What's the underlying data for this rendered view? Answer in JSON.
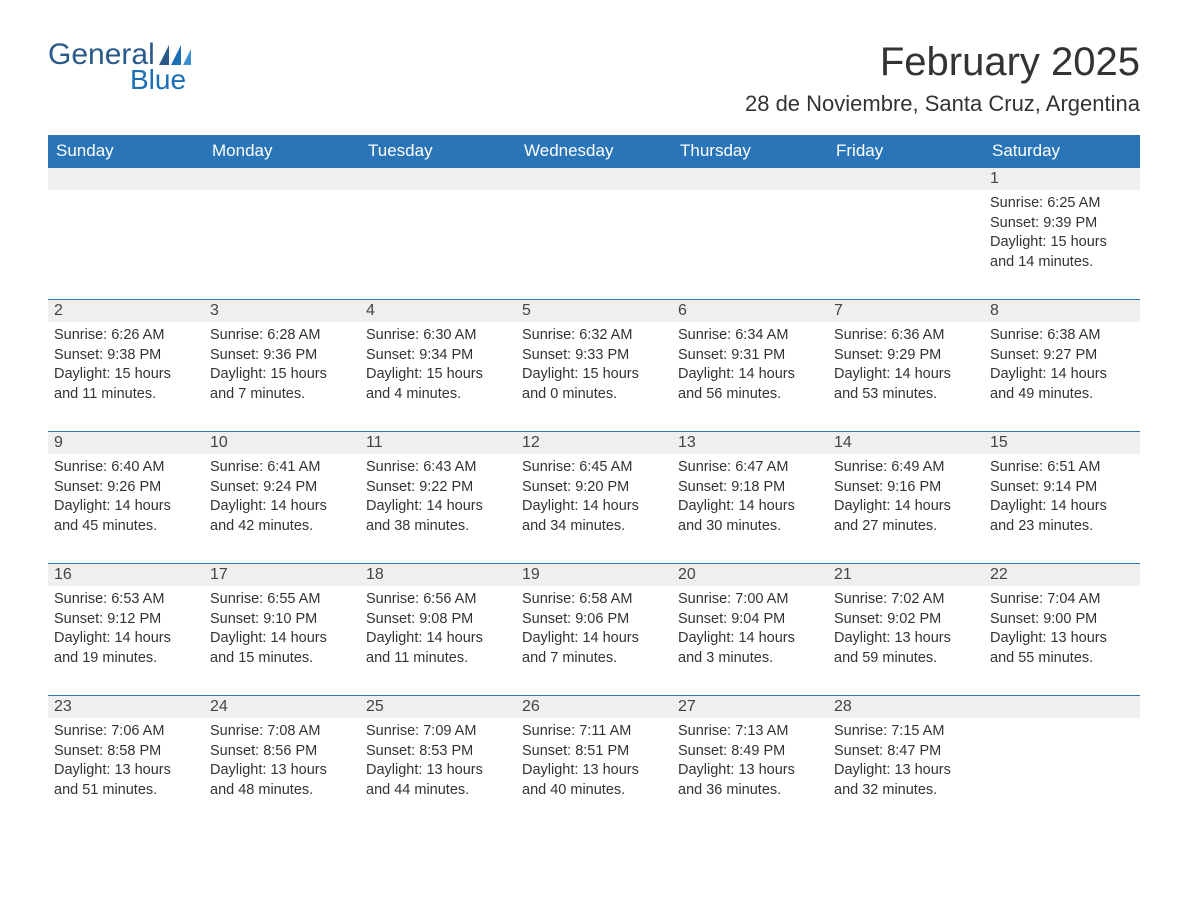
{
  "logo": {
    "word1": "General",
    "word2": "Blue"
  },
  "title": "February 2025",
  "location": "28 de Noviembre, Santa Cruz, Argentina",
  "colors": {
    "header_bg": "#2a74b8",
    "header_fg": "#ffffff",
    "row_stripe": "#efefef",
    "rule": "#2a74b8",
    "text": "#333333",
    "logo_dark": "#2a5a8a",
    "logo_light": "#1b6fb5"
  },
  "typography": {
    "title_fontsize_pt": 30,
    "location_fontsize_pt": 17,
    "header_fontsize_pt": 13,
    "daynum_fontsize_pt": 12,
    "body_fontsize_pt": 11
  },
  "day_headers": [
    "Sunday",
    "Monday",
    "Tuesday",
    "Wednesday",
    "Thursday",
    "Friday",
    "Saturday"
  ],
  "weeks": [
    [
      null,
      null,
      null,
      null,
      null,
      null,
      {
        "n": "1",
        "sunrise": "6:25 AM",
        "sunset": "9:39 PM",
        "daylight": "15 hours and 14 minutes."
      }
    ],
    [
      {
        "n": "2",
        "sunrise": "6:26 AM",
        "sunset": "9:38 PM",
        "daylight": "15 hours and 11 minutes."
      },
      {
        "n": "3",
        "sunrise": "6:28 AM",
        "sunset": "9:36 PM",
        "daylight": "15 hours and 7 minutes."
      },
      {
        "n": "4",
        "sunrise": "6:30 AM",
        "sunset": "9:34 PM",
        "daylight": "15 hours and 4 minutes."
      },
      {
        "n": "5",
        "sunrise": "6:32 AM",
        "sunset": "9:33 PM",
        "daylight": "15 hours and 0 minutes."
      },
      {
        "n": "6",
        "sunrise": "6:34 AM",
        "sunset": "9:31 PM",
        "daylight": "14 hours and 56 minutes."
      },
      {
        "n": "7",
        "sunrise": "6:36 AM",
        "sunset": "9:29 PM",
        "daylight": "14 hours and 53 minutes."
      },
      {
        "n": "8",
        "sunrise": "6:38 AM",
        "sunset": "9:27 PM",
        "daylight": "14 hours and 49 minutes."
      }
    ],
    [
      {
        "n": "9",
        "sunrise": "6:40 AM",
        "sunset": "9:26 PM",
        "daylight": "14 hours and 45 minutes."
      },
      {
        "n": "10",
        "sunrise": "6:41 AM",
        "sunset": "9:24 PM",
        "daylight": "14 hours and 42 minutes."
      },
      {
        "n": "11",
        "sunrise": "6:43 AM",
        "sunset": "9:22 PM",
        "daylight": "14 hours and 38 minutes."
      },
      {
        "n": "12",
        "sunrise": "6:45 AM",
        "sunset": "9:20 PM",
        "daylight": "14 hours and 34 minutes."
      },
      {
        "n": "13",
        "sunrise": "6:47 AM",
        "sunset": "9:18 PM",
        "daylight": "14 hours and 30 minutes."
      },
      {
        "n": "14",
        "sunrise": "6:49 AM",
        "sunset": "9:16 PM",
        "daylight": "14 hours and 27 minutes."
      },
      {
        "n": "15",
        "sunrise": "6:51 AM",
        "sunset": "9:14 PM",
        "daylight": "14 hours and 23 minutes."
      }
    ],
    [
      {
        "n": "16",
        "sunrise": "6:53 AM",
        "sunset": "9:12 PM",
        "daylight": "14 hours and 19 minutes."
      },
      {
        "n": "17",
        "sunrise": "6:55 AM",
        "sunset": "9:10 PM",
        "daylight": "14 hours and 15 minutes."
      },
      {
        "n": "18",
        "sunrise": "6:56 AM",
        "sunset": "9:08 PM",
        "daylight": "14 hours and 11 minutes."
      },
      {
        "n": "19",
        "sunrise": "6:58 AM",
        "sunset": "9:06 PM",
        "daylight": "14 hours and 7 minutes."
      },
      {
        "n": "20",
        "sunrise": "7:00 AM",
        "sunset": "9:04 PM",
        "daylight": "14 hours and 3 minutes."
      },
      {
        "n": "21",
        "sunrise": "7:02 AM",
        "sunset": "9:02 PM",
        "daylight": "13 hours and 59 minutes."
      },
      {
        "n": "22",
        "sunrise": "7:04 AM",
        "sunset": "9:00 PM",
        "daylight": "13 hours and 55 minutes."
      }
    ],
    [
      {
        "n": "23",
        "sunrise": "7:06 AM",
        "sunset": "8:58 PM",
        "daylight": "13 hours and 51 minutes."
      },
      {
        "n": "24",
        "sunrise": "7:08 AM",
        "sunset": "8:56 PM",
        "daylight": "13 hours and 48 minutes."
      },
      {
        "n": "25",
        "sunrise": "7:09 AM",
        "sunset": "8:53 PM",
        "daylight": "13 hours and 44 minutes."
      },
      {
        "n": "26",
        "sunrise": "7:11 AM",
        "sunset": "8:51 PM",
        "daylight": "13 hours and 40 minutes."
      },
      {
        "n": "27",
        "sunrise": "7:13 AM",
        "sunset": "8:49 PM",
        "daylight": "13 hours and 36 minutes."
      },
      {
        "n": "28",
        "sunrise": "7:15 AM",
        "sunset": "8:47 PM",
        "daylight": "13 hours and 32 minutes."
      },
      null
    ]
  ],
  "labels": {
    "sunrise": "Sunrise: ",
    "sunset": "Sunset: ",
    "daylight": "Daylight: "
  }
}
